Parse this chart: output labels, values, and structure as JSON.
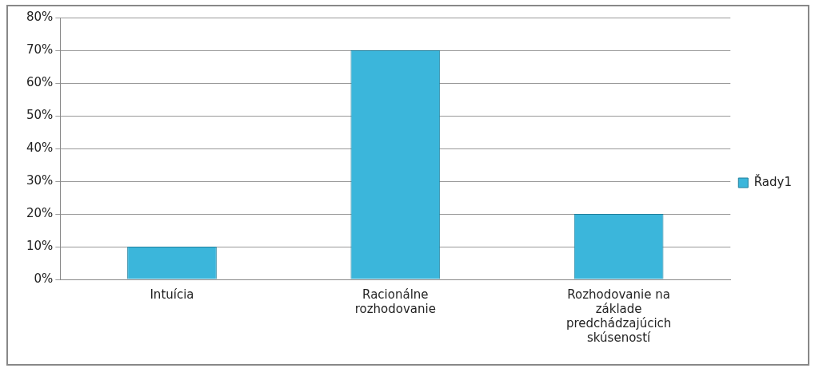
{
  "chart_data": {
    "type": "bar",
    "categories": [
      "Intuícia",
      "Racionálne rozhodovanie",
      "Rozhodovanie na základe predchádzajúcich skúseností"
    ],
    "series": [
      {
        "name": "Řady1",
        "color": "#3bb6db",
        "values": [
          10,
          70,
          20
        ]
      }
    ],
    "ylim": [
      0,
      80
    ],
    "yticks": [
      {
        "value": 0,
        "label": "0%"
      },
      {
        "value": 10,
        "label": "10%"
      },
      {
        "value": 20,
        "label": "20%"
      },
      {
        "value": 30,
        "label": "30%"
      },
      {
        "value": 40,
        "label": "40%"
      },
      {
        "value": 50,
        "label": "50%"
      },
      {
        "value": 60,
        "label": "60%"
      },
      {
        "value": 70,
        "label": "70%"
      },
      {
        "value": 80,
        "label": "80%"
      }
    ],
    "grid": "y",
    "legend": "right"
  }
}
